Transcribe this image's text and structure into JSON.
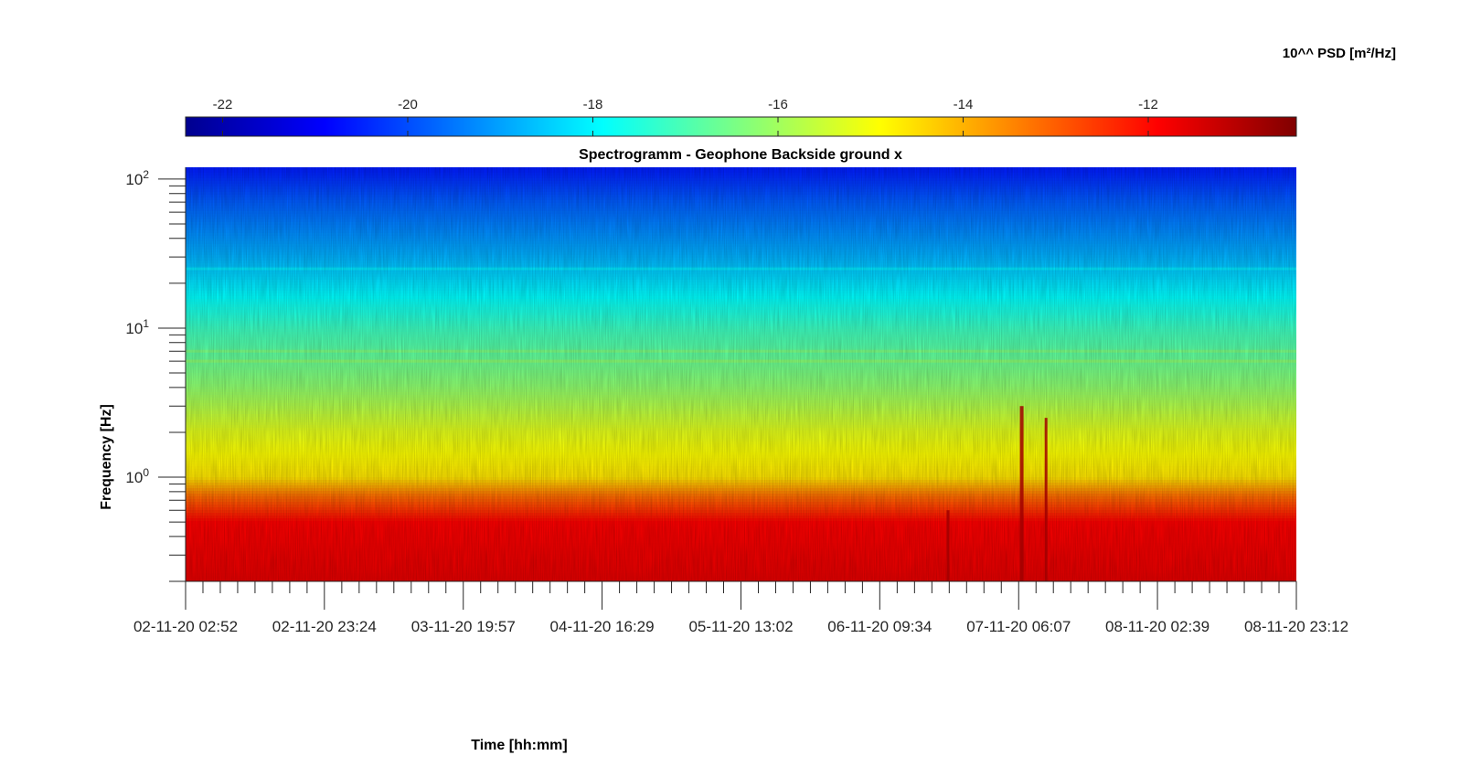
{
  "chart_data": {
    "type": "heatmap",
    "title": "Spectrogramm - Geophone Backside ground x",
    "xlabel": "Time [hh:mm]",
    "ylabel": "Frequency [Hz]",
    "colorbar_label": "10^^ PSD [m²/Hz]",
    "colormap": "jet",
    "clim": [
      -22.4,
      -10.4
    ],
    "colorbar_ticks": [
      -22,
      -20,
      -18,
      -16,
      -14,
      -12
    ],
    "colorbar_tick_labels": [
      "-22",
      "-20",
      "-18",
      "-16",
      "-14",
      "-12"
    ],
    "x_tick_labels": [
      "02-11-20 02:52",
      "02-11-20 23:24",
      "03-11-20 19:57",
      "04-11-20 16:29",
      "05-11-20 13:02",
      "06-11-20 09:34",
      "07-11-20 06:07",
      "08-11-20 02:39",
      "08-11-20 23:12"
    ],
    "x_range": [
      "02-11-20 02:52",
      "08-11-20 23:12"
    ],
    "y_scale": "log",
    "y_range": [
      0.2,
      120
    ],
    "y_ticks": [
      1,
      10,
      100
    ],
    "y_tick_labels": [
      {
        "base": "10",
        "exp": "0"
      },
      {
        "base": "10",
        "exp": "1"
      },
      {
        "base": "10",
        "exp": "2"
      }
    ],
    "psd_profile_by_frequency": [
      {
        "f": 0.2,
        "psd": -11.6
      },
      {
        "f": 0.5,
        "psd": -11.9
      },
      {
        "f": 0.75,
        "psd": -13.2
      },
      {
        "f": 1.0,
        "psd": -14.6
      },
      {
        "f": 2.0,
        "psd": -15.2
      },
      {
        "f": 4.0,
        "psd": -16.2
      },
      {
        "f": 10.0,
        "psd": -17.2
      },
      {
        "f": 30.0,
        "psd": -18.8
      },
      {
        "f": 70.0,
        "psd": -19.8
      },
      {
        "f": 120.0,
        "psd": -20.6
      }
    ],
    "narrowband_lines_hz": [
      6,
      7,
      25
    ],
    "transient_events": [
      "06-11-20 19:40",
      "07-11-20 06:30",
      "07-11-20 10:10"
    ],
    "grid": false
  }
}
